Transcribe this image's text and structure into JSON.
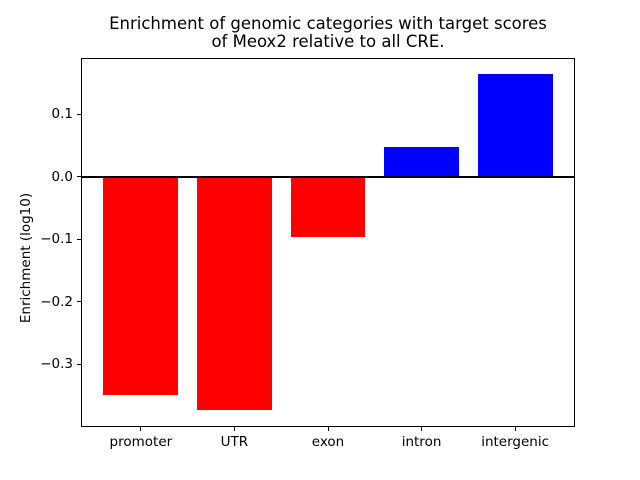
{
  "chart_data": {
    "type": "bar",
    "title": "Enrichment of genomic categories with target scores\nof Meox2 relative to all CRE.",
    "title_line1": "Enrichment of genomic categories with target scores",
    "title_line2": "of Meox2 relative to all CRE.",
    "categories": [
      "promoter",
      "UTR",
      "exon",
      "intron",
      "intergenic"
    ],
    "values": [
      -0.349,
      -0.373,
      -0.097,
      0.047,
      0.164
    ],
    "xlabel": "",
    "ylabel": "Enrichment (log10)",
    "ylim": [
      -0.4,
      0.19
    ],
    "yticks": [
      0.1,
      0.0,
      -0.1,
      -0.2,
      -0.3
    ],
    "grid": false,
    "legend": false,
    "zero_line": true,
    "bar_width_frac": 0.8,
    "positive_color": "#0000ff",
    "negative_color": "#ff0000",
    "axis_color": "#000000",
    "background_color": "#ffffff"
  }
}
